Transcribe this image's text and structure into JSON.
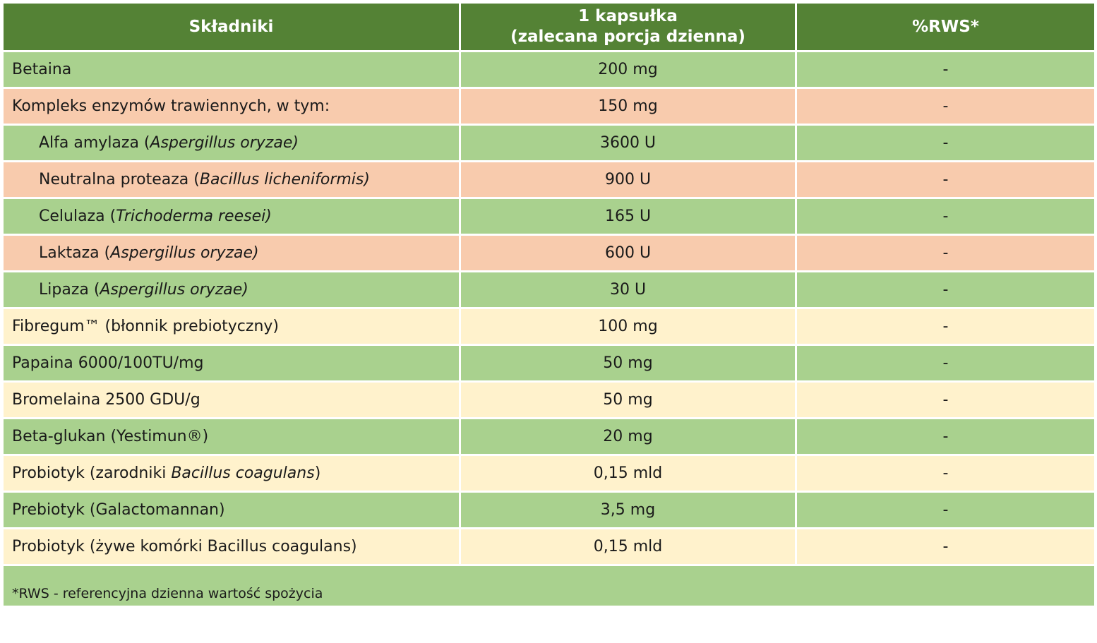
{
  "header": {
    "col1": "Składniki",
    "col2_line1": "1 kapsułka",
    "col2_line2": "(zalecana porcja dzienna)",
    "col3": "%RWS*"
  },
  "colors": {
    "header": "#548235",
    "green_row": "#a9d18e",
    "orange_row": "#f8cbad",
    "cream_row": "#fff2cc"
  },
  "rows": [
    {
      "name": "Betaina",
      "name_italic": "",
      "name_suffix": "",
      "amount": "200 mg",
      "rws": "-"
    },
    {
      "name": "Kompleks enzymów trawiennych, w tym:",
      "name_italic": "",
      "name_suffix": "",
      "amount": "150 mg",
      "rws": "-"
    },
    {
      "name": "Alfa amylaza (",
      "name_italic": "Aspergillus oryzae)",
      "name_suffix": "",
      "amount": "3600 U",
      "rws": "-"
    },
    {
      "name": "Neutralna proteaza (",
      "name_italic": "Bacillus licheniformis)",
      "name_suffix": "",
      "amount": "900 U",
      "rws": "-"
    },
    {
      "name": "Celulaza (",
      "name_italic": "Trichoderma reesei)",
      "name_suffix": "",
      "amount": "165 U",
      "rws": "-"
    },
    {
      "name": "Laktaza (",
      "name_italic": "Aspergillus oryzae)",
      "name_suffix": "",
      "amount": "600 U",
      "rws": "-"
    },
    {
      "name": "Lipaza (",
      "name_italic": "Aspergillus oryzae)",
      "name_suffix": "",
      "amount": "30 U",
      "rws": "-"
    },
    {
      "name": "Fibregum™ (błonnik prebiotyczny)",
      "name_italic": "",
      "name_suffix": "",
      "amount": "100 mg",
      "rws": "-"
    },
    {
      "name": "Papaina 6000/100TU/mg",
      "name_italic": "",
      "name_suffix": "",
      "amount": "50 mg",
      "rws": "-"
    },
    {
      "name": "Bromelaina 2500 GDU/g",
      "name_italic": "",
      "name_suffix": "",
      "amount": "50 mg",
      "rws": "-"
    },
    {
      "name": "Beta-glukan (Yestimun®)",
      "name_italic": "",
      "name_suffix": "",
      "amount": "20 mg",
      "rws": "-"
    },
    {
      "name": "Probiotyk (zarodniki ",
      "name_italic": "Bacillus coagulans",
      "name_suffix": ")",
      "amount": "0,15 mld",
      "rws": "-"
    },
    {
      "name": "Prebiotyk (Galactomannan)",
      "name_italic": "",
      "name_suffix": "",
      "amount": "3,5 mg",
      "rws": "-"
    },
    {
      "name": "Probiotyk (żywe komórki Bacillus coagulans)",
      "name_italic": "",
      "name_suffix": "",
      "amount": "0,15 mld",
      "rws": "-"
    }
  ],
  "footnote": "*RWS - referencyjna dzienna wartość spożycia"
}
